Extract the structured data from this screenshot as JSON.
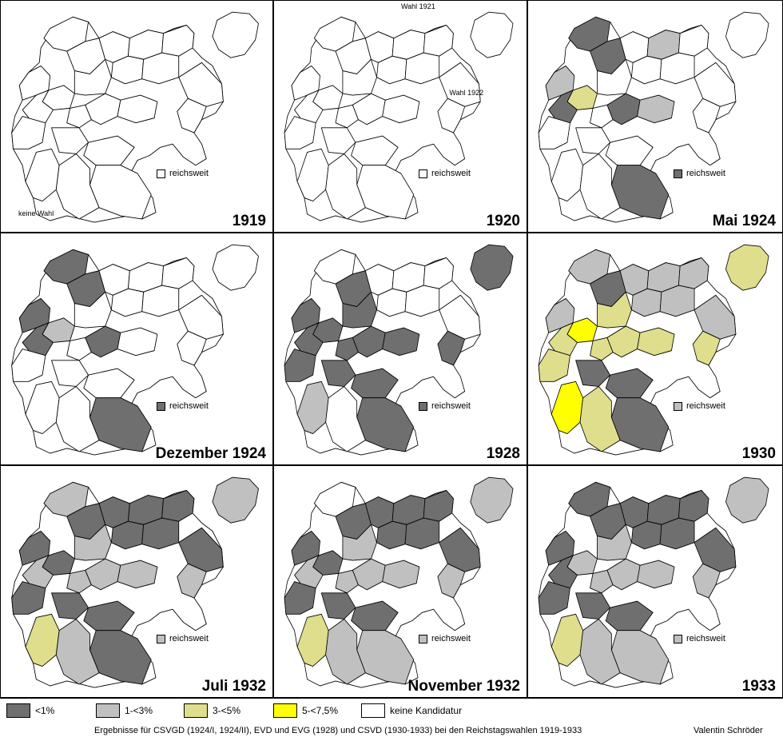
{
  "colors": {
    "lt1": "#6f6f6f",
    "lt3": "#c0c0c0",
    "lt5": "#dede8c",
    "lt75": "#ffff00",
    "none": "#ffffff"
  },
  "panels": [
    {
      "title": "1919",
      "reichsweit": {
        "label": "reichsweit",
        "color": "none"
      },
      "notes": {
        "no_vote": "keine Wahl"
      },
      "region_colors": [
        "none",
        "none",
        "none",
        "none",
        "none",
        "none",
        "none",
        "none",
        "none",
        "none",
        "none",
        "none",
        "none",
        "none",
        "none",
        "none",
        "none",
        "none",
        "none",
        "none",
        "none",
        "none"
      ]
    },
    {
      "title": "1920",
      "reichsweit": {
        "label": "reichsweit",
        "color": "none"
      },
      "notes": {
        "wahl_1921": "Wahl 1921",
        "wahl_1922": "Wahl 1922"
      },
      "region_colors": [
        "none",
        "none",
        "none",
        "none",
        "none",
        "none",
        "none",
        "none",
        "none",
        "none",
        "none",
        "none",
        "none",
        "none",
        "none",
        "none",
        "none",
        "none",
        "none",
        "none",
        "none",
        "none"
      ]
    },
    {
      "title": "Mai 1924",
      "reichsweit": {
        "label": "reichsweit",
        "color": "lt1"
      },
      "region_colors": [
        "lt3",
        "lt1",
        "lt5",
        "none",
        "lt1",
        "lt1",
        "none",
        "lt3",
        "none",
        "none",
        "none",
        "none",
        "lt1",
        "lt3",
        "none",
        "none",
        "none",
        "none",
        "none",
        "lt1",
        "none",
        "none"
      ]
    },
    {
      "title": "Dezember 1924",
      "reichsweit": {
        "label": "reichsweit",
        "color": "lt1"
      },
      "region_colors": [
        "lt1",
        "lt1",
        "lt3",
        "none",
        "lt1",
        "lt1",
        "none",
        "none",
        "none",
        "none",
        "none",
        "none",
        "lt1",
        "none",
        "none",
        "none",
        "none",
        "none",
        "none",
        "lt1",
        "none",
        "none"
      ]
    },
    {
      "title": "1928",
      "reichsweit": {
        "label": "reichsweit",
        "color": "lt1"
      },
      "region_colors": [
        "lt1",
        "none",
        "lt1",
        "lt1",
        "lt1",
        "lt1",
        "none",
        "none",
        "none",
        "none",
        "none",
        "lt1",
        "lt1",
        "lt1",
        "none",
        "lt1",
        "lt3",
        "lt1",
        "lt1",
        "lt1",
        "none",
        "lt1"
      ]
    },
    {
      "title": "1930",
      "reichsweit": {
        "label": "reichsweit",
        "color": "lt3"
      },
      "region_colors": [
        "lt3",
        "lt3",
        "lt75",
        "lt5",
        "lt5",
        "lt1",
        "lt3",
        "lt3",
        "lt3",
        "lt3",
        "lt3",
        "lt5",
        "lt5",
        "lt5",
        "lt3",
        "lt5",
        "lt75",
        "lt1",
        "lt1",
        "lt1",
        "lt5",
        "lt5"
      ]
    },
    {
      "title": "Juli 1932",
      "reichsweit": {
        "label": "reichsweit",
        "color": "lt3"
      },
      "region_colors": [
        "lt1",
        "lt3",
        "lt1",
        "lt3",
        "lt3",
        "lt1",
        "lt1",
        "lt1",
        "lt1",
        "lt1",
        "lt1",
        "lt3",
        "lt3",
        "lt3",
        "lt1",
        "lt1",
        "lt5",
        "lt1",
        "lt1",
        "lt1",
        "lt3",
        "lt3"
      ]
    },
    {
      "title": "November 1932",
      "reichsweit": {
        "label": "reichsweit",
        "color": "lt3"
      },
      "region_colors": [
        "lt1",
        "none",
        "lt1",
        "lt3",
        "lt3",
        "lt1",
        "lt1",
        "lt1",
        "lt1",
        "lt1",
        "lt1",
        "lt3",
        "lt3",
        "lt3",
        "lt1",
        "lt1",
        "lt5",
        "lt1",
        "lt1",
        "lt3",
        "lt3",
        "lt3"
      ]
    },
    {
      "title": "1933",
      "reichsweit": {
        "label": "reichsweit",
        "color": "lt3"
      },
      "region_colors": [
        "lt1",
        "lt1",
        "lt3",
        "lt3",
        "lt1",
        "lt1",
        "lt1",
        "lt1",
        "lt1",
        "lt1",
        "lt1",
        "lt3",
        "lt3",
        "lt3",
        "lt1",
        "lt1",
        "lt5",
        "lt1",
        "lt1",
        "lt3",
        "lt3",
        "lt3"
      ]
    }
  ],
  "legend": [
    {
      "label": "<1%",
      "color": "lt1"
    },
    {
      "label": "1-<3%",
      "color": "lt3"
    },
    {
      "label": "3-<5%",
      "color": "lt5"
    },
    {
      "label": "5-<7,5%",
      "color": "lt75"
    },
    {
      "label": "keine Kandidatur",
      "color": "none"
    }
  ],
  "footer": {
    "caption": "Ergebnisse für CSVGD (1924/I, 1924/II), EVD und EVG (1928) und CSVD (1930-1933) bei den Reichstagswahlen 1919-1933",
    "author": "Valentin Schröder"
  }
}
